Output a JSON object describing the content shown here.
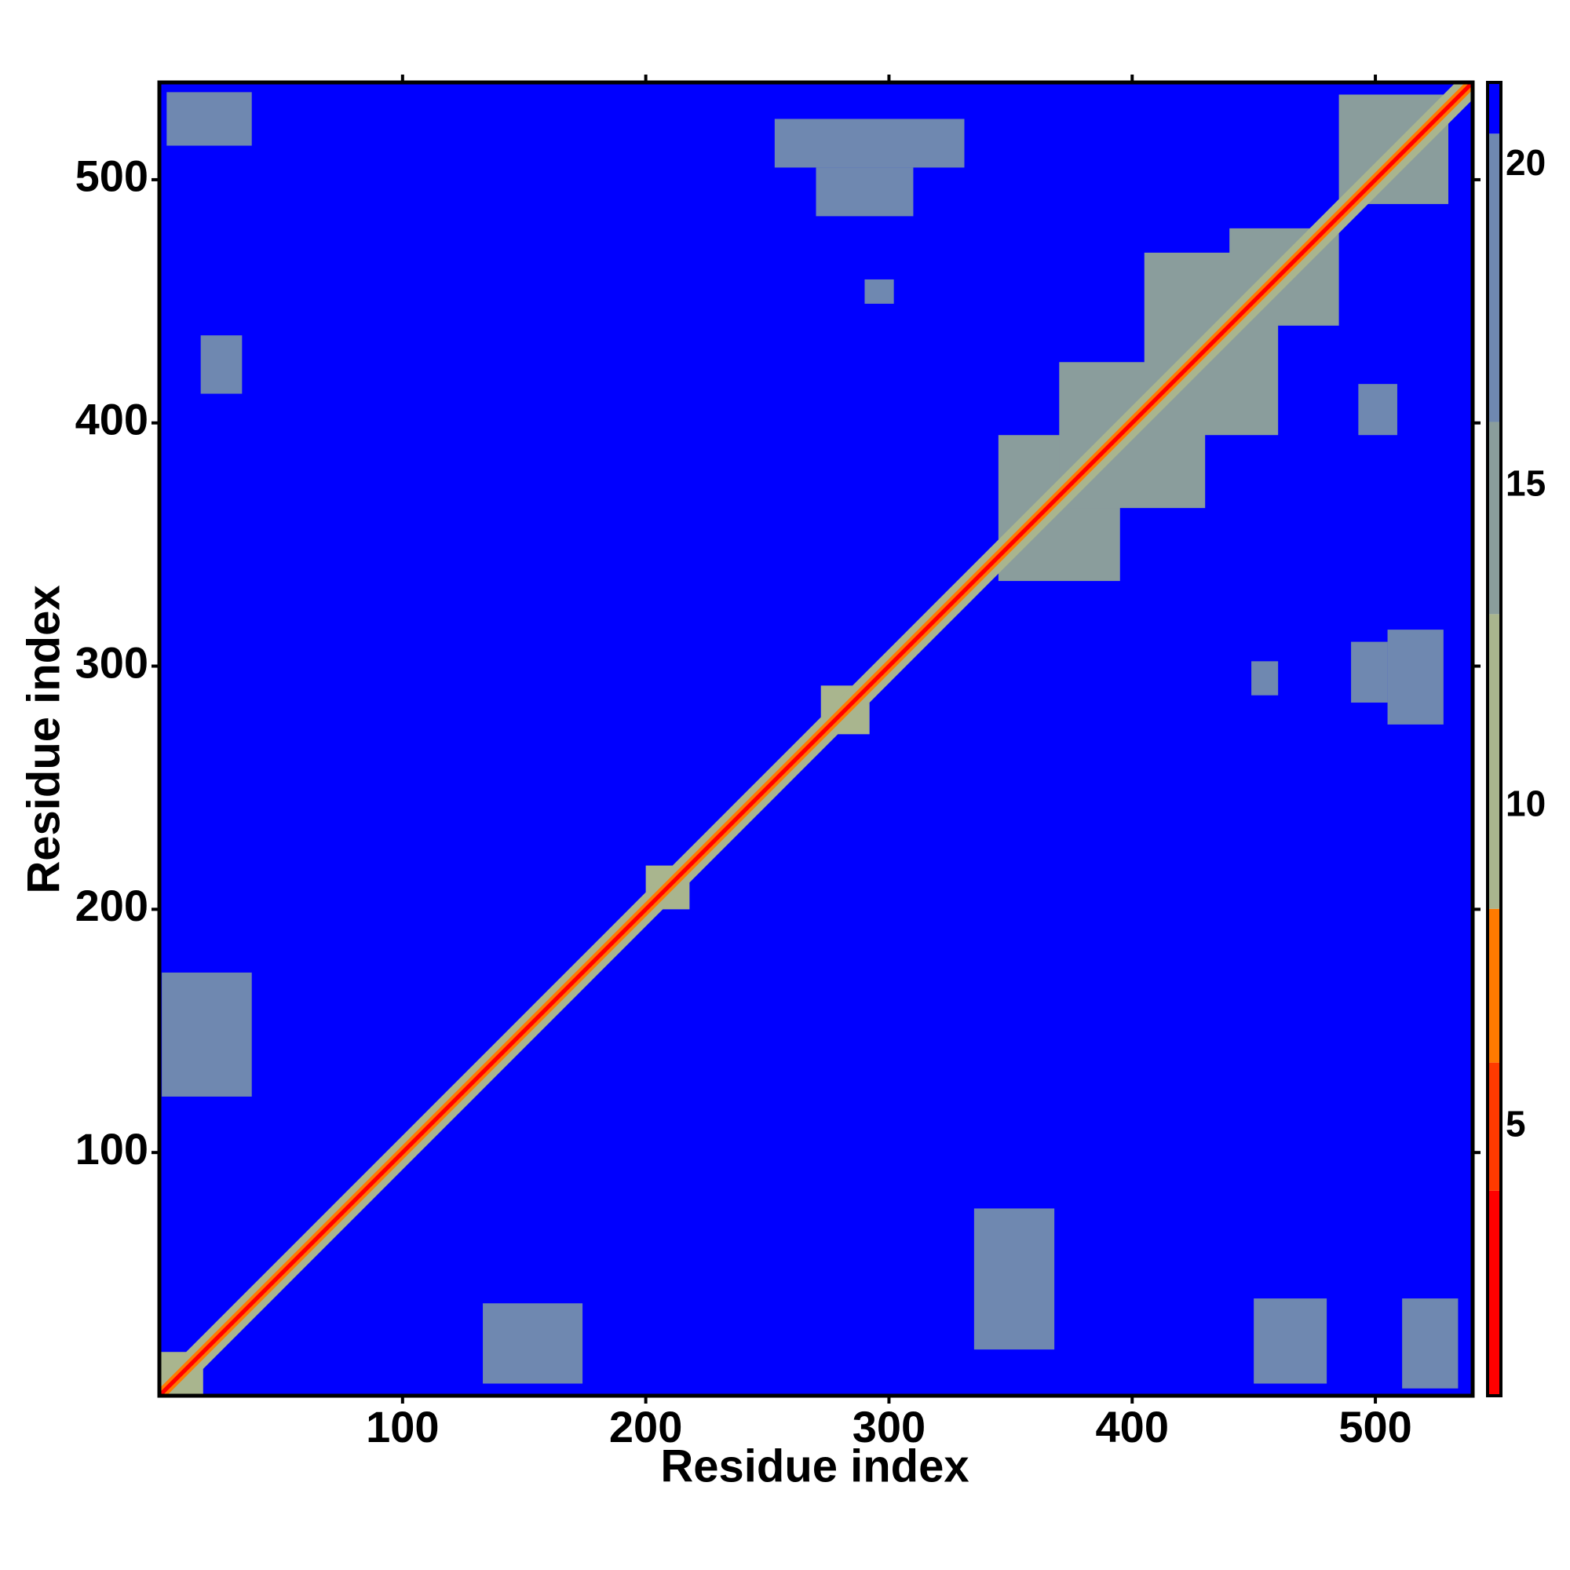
{
  "chart_data": {
    "type": "heatmap",
    "x_label": "Residue index",
    "y_label": "Residue index",
    "xlim": [
      0,
      540
    ],
    "ylim": [
      0,
      540
    ],
    "xticks": [
      100,
      200,
      300,
      400,
      500
    ],
    "yticks": [
      100,
      200,
      300,
      400,
      500
    ],
    "zlim": [
      0.8,
      21.3
    ],
    "zticks": [
      5,
      10,
      15,
      20
    ],
    "colorscale": [
      {
        "value": 0.8,
        "color": "#ff0000"
      },
      {
        "value": 4,
        "color": "#ff3a00"
      },
      {
        "value": 6,
        "color": "#ff7a00"
      },
      {
        "value": 8.4,
        "color": "#a9b58e"
      },
      {
        "value": 13,
        "color": "#8a9d9c"
      },
      {
        "value": 16,
        "color": "#6f88b0"
      },
      {
        "value": 20.5,
        "color": "#0000ff"
      }
    ],
    "background_value": 21,
    "patches": [
      {
        "x": [
          3,
          38
        ],
        "y": [
          514,
          536
        ],
        "value": 17
      },
      {
        "x": [
          511,
          534
        ],
        "y": [
          3,
          40
        ],
        "value": 17
      },
      {
        "x": [
          1,
          38
        ],
        "y": [
          123,
          174
        ],
        "value": 17
      },
      {
        "x": [
          133,
          174
        ],
        "y": [
          5,
          38
        ],
        "value": 17
      },
      {
        "x": [
          253,
          331
        ],
        "y": [
          505,
          525
        ],
        "value": 17
      },
      {
        "x": [
          270,
          310
        ],
        "y": [
          485,
          505
        ],
        "value": 17
      },
      {
        "x": [
          505,
          528
        ],
        "y": [
          276,
          315
        ],
        "value": 17
      },
      {
        "x": [
          490,
          505
        ],
        "y": [
          285,
          310
        ],
        "value": 17
      },
      {
        "x": [
          290,
          302
        ],
        "y": [
          449,
          459
        ],
        "value": 17
      },
      {
        "x": [
          449,
          460
        ],
        "y": [
          288,
          302
        ],
        "value": 17
      },
      {
        "x": [
          17,
          34
        ],
        "y": [
          412,
          436
        ],
        "value": 18
      },
      {
        "x": [
          493,
          509
        ],
        "y": [
          395,
          416
        ],
        "value": 18
      },
      {
        "x": [
          335,
          368
        ],
        "y": [
          19,
          77
        ],
        "value": 18
      },
      {
        "x": [
          450,
          480
        ],
        "y": [
          5,
          40
        ],
        "value": 18
      },
      {
        "x": [
          345,
          395
        ],
        "y": [
          335,
          395
        ],
        "value": 13.5
      },
      {
        "x": [
          370,
          430
        ],
        "y": [
          365,
          425
        ],
        "value": 13.5
      },
      {
        "x": [
          405,
          460
        ],
        "y": [
          395,
          470
        ],
        "value": 13.5
      },
      {
        "x": [
          440,
          485
        ],
        "y": [
          440,
          480
        ],
        "value": 13.5
      },
      {
        "x": [
          485,
          530
        ],
        "y": [
          490,
          535
        ],
        "value": 13.5
      },
      {
        "x": [
          272,
          292
        ],
        "y": [
          272,
          292
        ],
        "value": 12
      },
      {
        "x": [
          200,
          218
        ],
        "y": [
          200,
          218
        ],
        "value": 12
      },
      {
        "x": [
          0,
          18
        ],
        "y": [
          0,
          18
        ],
        "value": 12
      }
    ],
    "diagonal": [
      {
        "half_width": 7,
        "value": 12
      },
      {
        "half_width": 3,
        "value": 7
      },
      {
        "half_width": 1.2,
        "value": 2
      }
    ]
  }
}
